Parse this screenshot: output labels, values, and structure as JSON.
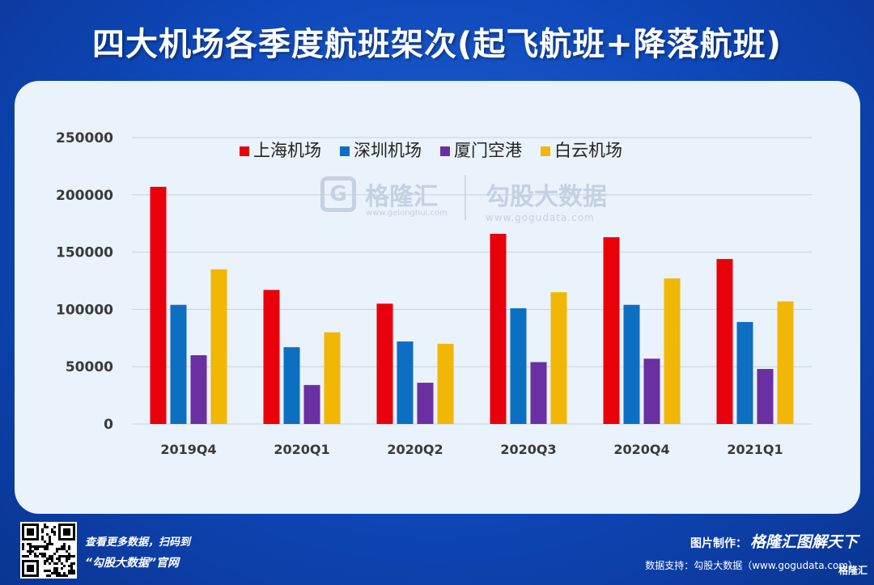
{
  "title": "四大机场各季度航班架次(起飞航班+降落航班)",
  "colors": {
    "上海机场": "#e8000b",
    "深圳机场": "#0c6fc2",
    "厦门空港": "#6a2fa0",
    "白云机场": "#f2b705",
    "grid": "#c7d3e0",
    "axis_text": "#3a3a3a"
  },
  "watermark": {
    "brand1": "格隆汇",
    "url1": "www.gelonghui.com",
    "brand2": "勾股大数据",
    "url2": "www.gogudata.com"
  },
  "footer": {
    "scan_line1": "查看更多数据，扫码到",
    "scan_line2": "“勾股大数据”官网",
    "credit_label": "图片制作：",
    "credit_brand": "格隆汇图解天下",
    "source": "数据支持：勾股大数据（www.gogudata.com）",
    "corner_logo": "格隆汇"
  },
  "chart_data": {
    "type": "bar",
    "title": "四大机场各季度航班架次(起飞航班+降落航班)",
    "categories": [
      "2019Q4",
      "2020Q1",
      "2020Q2",
      "2020Q3",
      "2020Q4",
      "2021Q1"
    ],
    "series": [
      {
        "name": "上海机场",
        "values": [
          207000,
          117000,
          105000,
          166000,
          163000,
          144000
        ]
      },
      {
        "name": "深圳机场",
        "values": [
          104000,
          67000,
          72000,
          101000,
          104000,
          89000
        ]
      },
      {
        "name": "厦门空港",
        "values": [
          60000,
          34000,
          36000,
          54000,
          57000,
          48000
        ]
      },
      {
        "name": "白云机场",
        "values": [
          135000,
          80000,
          70000,
          115000,
          127000,
          107000
        ]
      }
    ],
    "yticks": [
      "0",
      "50000",
      "100000",
      "150000",
      "200000",
      "250000"
    ],
    "ylim": [
      0,
      250000
    ],
    "grid": true,
    "legend_position": "top-center"
  }
}
